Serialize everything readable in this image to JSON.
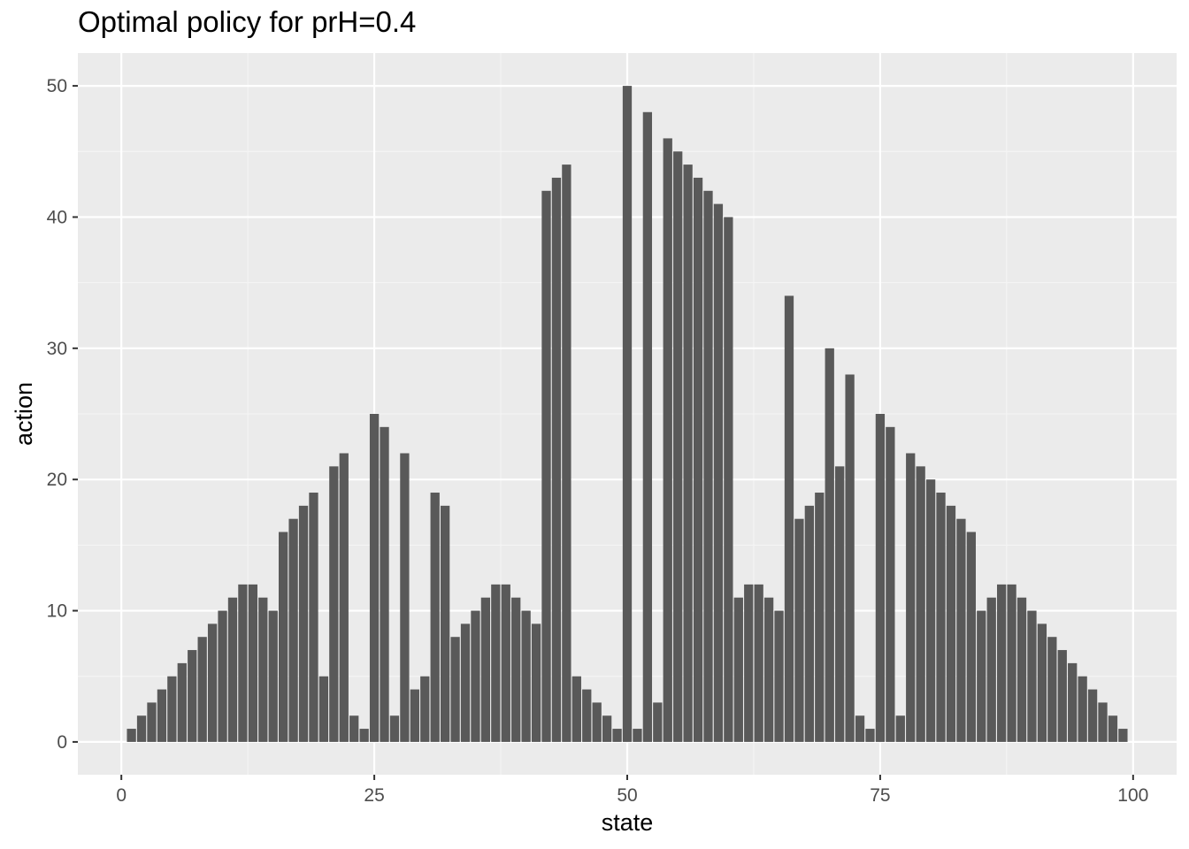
{
  "chart_data": {
    "type": "bar",
    "title": "Optimal policy for prH=0.4",
    "xlabel": "state",
    "ylabel": "action",
    "x": [
      1,
      2,
      3,
      4,
      5,
      6,
      7,
      8,
      9,
      10,
      11,
      12,
      13,
      14,
      15,
      16,
      17,
      18,
      19,
      20,
      21,
      22,
      23,
      24,
      25,
      26,
      27,
      28,
      29,
      30,
      31,
      32,
      33,
      34,
      35,
      36,
      37,
      38,
      39,
      40,
      41,
      42,
      43,
      44,
      45,
      46,
      47,
      48,
      49,
      50,
      51,
      52,
      53,
      54,
      55,
      56,
      57,
      58,
      59,
      60,
      61,
      62,
      63,
      64,
      65,
      66,
      67,
      68,
      69,
      70,
      71,
      72,
      73,
      74,
      75,
      76,
      77,
      78,
      79,
      80,
      81,
      82,
      83,
      84,
      85,
      86,
      87,
      88,
      89,
      90,
      91,
      92,
      93,
      94,
      95,
      96,
      97,
      98,
      99
    ],
    "values": [
      1,
      2,
      3,
      4,
      5,
      6,
      7,
      8,
      9,
      10,
      11,
      12,
      12,
      11,
      10,
      16,
      17,
      18,
      19,
      5,
      21,
      22,
      2,
      1,
      25,
      24,
      2,
      22,
      4,
      5,
      19,
      18,
      8,
      9,
      10,
      11,
      12,
      12,
      11,
      10,
      9,
      42,
      43,
      44,
      5,
      4,
      3,
      2,
      1,
      50,
      1,
      48,
      3,
      46,
      45,
      44,
      43,
      42,
      41,
      40,
      11,
      12,
      12,
      11,
      10,
      34,
      17,
      18,
      19,
      30,
      21,
      28,
      2,
      1,
      25,
      24,
      2,
      22,
      21,
      20,
      19,
      18,
      17,
      16,
      10,
      11,
      12,
      12,
      11,
      10,
      9,
      8,
      7,
      6,
      5,
      4,
      3,
      2,
      1
    ],
    "xlim": [
      -4.3,
      104.3
    ],
    "ylim": [
      -2.5,
      52.5
    ],
    "x_ticks": [
      0,
      25,
      50,
      75,
      100
    ],
    "x_tick_labels": [
      "0",
      "25",
      "50",
      "75",
      "100"
    ],
    "y_ticks": [
      0,
      10,
      20,
      30,
      40,
      50
    ],
    "y_tick_labels": [
      "0",
      "10",
      "20",
      "30",
      "40",
      "50"
    ],
    "grid": true,
    "colors": {
      "bar": "#595959",
      "panel": "#ebebeb",
      "grid_major": "#ffffff",
      "grid_minor": "#f5f5f5",
      "tick_text": "#4d4d4d"
    }
  }
}
